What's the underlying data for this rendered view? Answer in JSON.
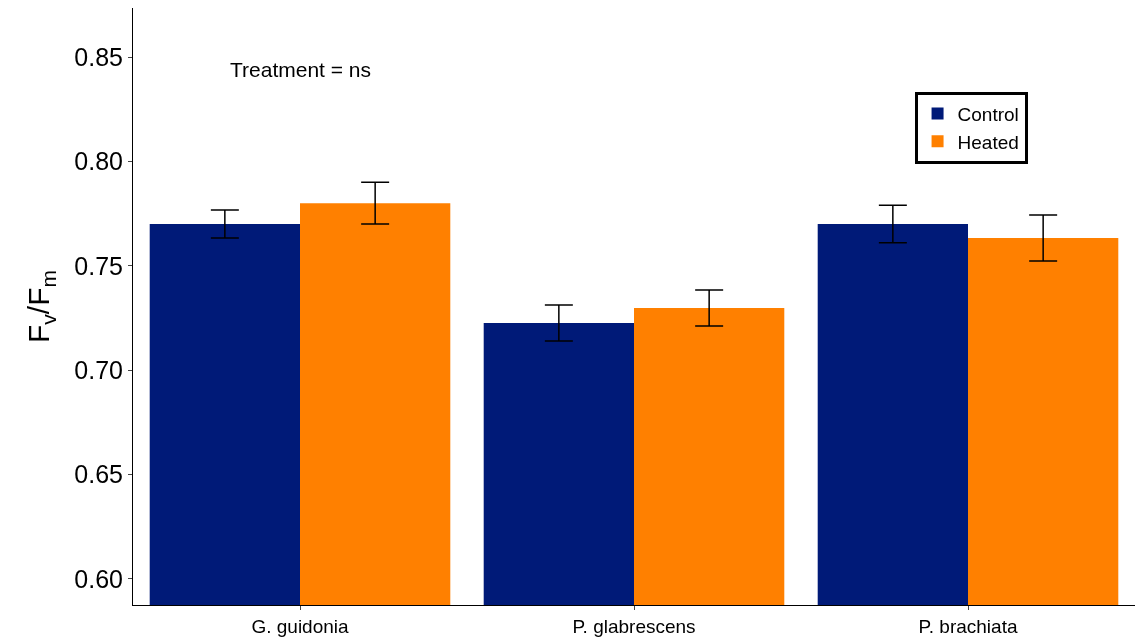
{
  "chart_data": {
    "type": "bar",
    "ylabel": "F$_{v}$/F$_{m}$",
    "categories": [
      "G. guidonia",
      "P. glabrescens",
      "P. brachiata"
    ],
    "series": [
      {
        "name": "Control",
        "color": "#001a78",
        "values": [
          0.77,
          0.7226,
          0.77
        ],
        "errors": [
          0.0067,
          0.0086,
          0.009
        ]
      },
      {
        "name": "Heated",
        "color": "#ff8000",
        "values": [
          0.78,
          0.7298,
          0.7633
        ],
        "errors": [
          0.01,
          0.0086,
          0.011
        ]
      }
    ],
    "ylim": [
      0.5875,
      0.8735
    ],
    "yticks": [
      {
        "value": 0.6,
        "label": "0.60"
      },
      0.65,
      {
        "value": 0.7,
        "label": "0.70"
      },
      0.75,
      {
        "value": 0.8,
        "label": "0.80"
      },
      0.85
    ],
    "annotations": [
      "Treatment = ns"
    ],
    "legend": "top right"
  }
}
